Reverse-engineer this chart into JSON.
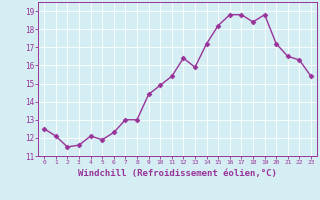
{
  "x": [
    0,
    1,
    2,
    3,
    4,
    5,
    6,
    7,
    8,
    9,
    10,
    11,
    12,
    13,
    14,
    15,
    16,
    17,
    18,
    19,
    20,
    21,
    22,
    23
  ],
  "y": [
    12.5,
    12.1,
    11.5,
    11.6,
    12.1,
    11.9,
    12.3,
    13.0,
    13.0,
    14.4,
    14.9,
    15.4,
    16.4,
    15.9,
    17.2,
    18.2,
    18.8,
    18.8,
    18.4,
    18.8,
    17.2,
    16.5,
    16.3,
    15.4
  ],
  "line_color": "#993399",
  "marker": "D",
  "marker_size": 2.5,
  "linewidth": 1.0,
  "xlabel": "Windchill (Refroidissement éolien,°C)",
  "xlabel_fontsize": 6.5,
  "ylim": [
    11,
    19.5
  ],
  "xlim": [
    -0.5,
    23.5
  ],
  "yticks": [
    11,
    12,
    13,
    14,
    15,
    16,
    17,
    18,
    19
  ],
  "xticks": [
    0,
    1,
    2,
    3,
    4,
    5,
    6,
    7,
    8,
    9,
    10,
    11,
    12,
    13,
    14,
    15,
    16,
    17,
    18,
    19,
    20,
    21,
    22,
    23
  ],
  "background_color": "#d4eef4",
  "grid_color": "#ffffff",
  "tick_color": "#993399",
  "tick_label_color": "#993399",
  "xlabel_color": "#993399",
  "spine_color": "#993399"
}
